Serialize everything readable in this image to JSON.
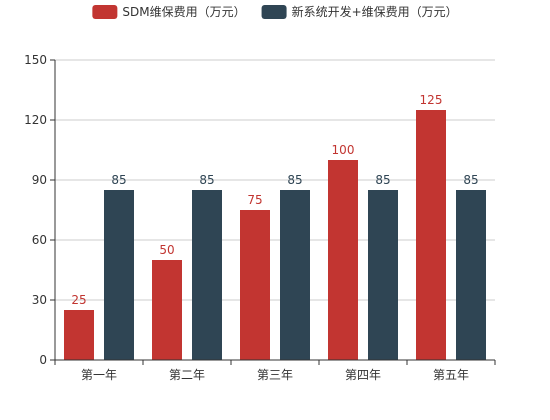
{
  "chart_data": {
    "type": "bar",
    "categories": [
      "第一年",
      "第二年",
      "第三年",
      "第四年",
      "第五年"
    ],
    "series": [
      {
        "name": "SDM维保费用（万元）",
        "values": [
          25,
          50,
          75,
          100,
          125
        ],
        "color": "#c23531"
      },
      {
        "name": "新系统开发+维保费用（万元）",
        "values": [
          85,
          85,
          85,
          85,
          85
        ],
        "color": "#2f4554"
      }
    ],
    "ylim": [
      0,
      150
    ],
    "yticks": [
      0,
      30,
      60,
      90,
      120,
      150
    ],
    "grid": true,
    "legend_position": "top-center",
    "title": "",
    "xlabel": "",
    "ylabel": ""
  }
}
